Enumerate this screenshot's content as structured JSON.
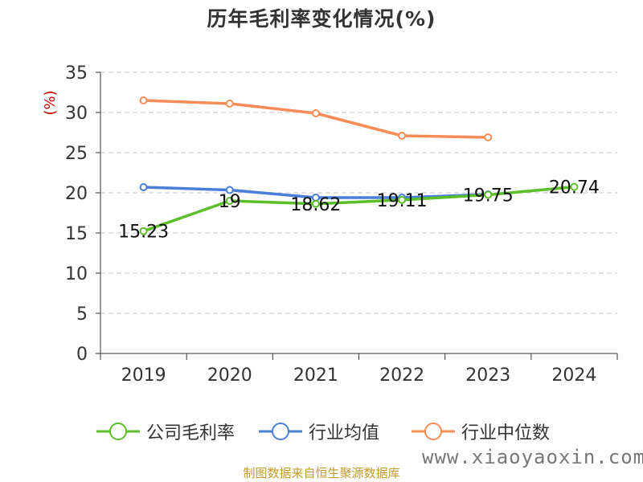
{
  "title": "历年毛利率变化情况(%)",
  "watermark": "www.xiaoyaoxin.com",
  "source": "制图数据来自恒生聚源数据库",
  "colors": {
    "company": "#5cbf2a",
    "industry_avg": "#4a7fd9",
    "industry_median": "#f88c56",
    "ylabel": "#d00000",
    "grid": "#c8c8c8",
    "axis": "#333333"
  },
  "chart_data": {
    "type": "line",
    "title": "历年毛利率变化情况(%)",
    "xlabel": "",
    "ylabel": "(%)",
    "categories": [
      "2019",
      "2020",
      "2021",
      "2022",
      "2023",
      "2024"
    ],
    "ylim": [
      0,
      35
    ],
    "yticks": [
      0,
      5,
      10,
      15,
      20,
      25,
      30,
      35
    ],
    "grid": true,
    "legend_position": "bottom",
    "series": [
      {
        "name": "公司毛利率",
        "color": "#5cbf2a",
        "values": [
          15.23,
          19,
          18.62,
          19.11,
          19.75,
          20.74
        ],
        "labels": [
          "15.23",
          "19",
          "18.62",
          "19.11",
          "19.75",
          "20.74"
        ]
      },
      {
        "name": "行业均值",
        "color": "#4a7fd9",
        "values": [
          20.7,
          20.35,
          19.4,
          19.4,
          19.8,
          null
        ]
      },
      {
        "name": "行业中位数",
        "color": "#f88c56",
        "values": [
          31.5,
          31.1,
          29.9,
          27.1,
          26.9,
          null
        ]
      }
    ]
  }
}
